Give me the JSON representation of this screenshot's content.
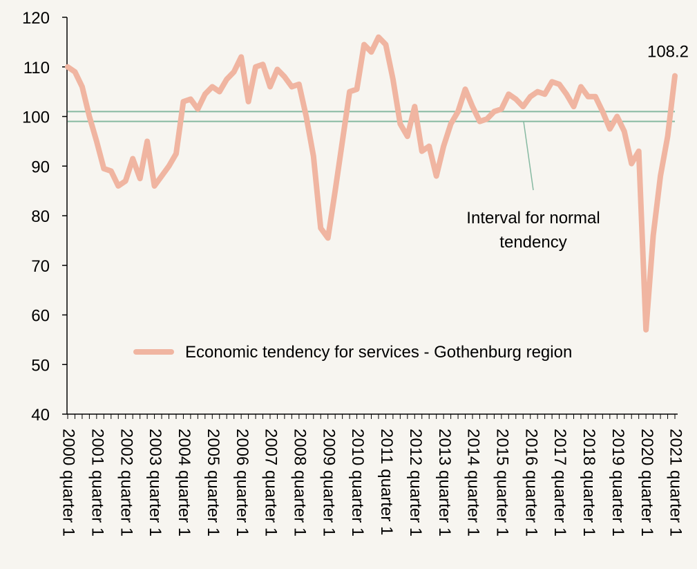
{
  "chart_data": {
    "type": "line",
    "categories": [
      "2000 quarter 1",
      null,
      null,
      null,
      "2001 quarter 1",
      null,
      null,
      null,
      "2002 quarter 1",
      null,
      null,
      null,
      "2003 quarter 1",
      null,
      null,
      null,
      "2004 quarter 1",
      null,
      null,
      null,
      "2005 quarter 1",
      null,
      null,
      null,
      "2006 quarter 1",
      null,
      null,
      null,
      "2007 quarter 1",
      null,
      null,
      null,
      "2008 quarter 1",
      null,
      null,
      null,
      "2009 quarter 1",
      null,
      null,
      null,
      "2010 quarter 1",
      null,
      null,
      null,
      "2011 quarter 1",
      null,
      null,
      null,
      "2012 quarter 1",
      null,
      null,
      null,
      "2013 quarter 1",
      null,
      null,
      null,
      "2014 quarter 1",
      null,
      null,
      null,
      "2015 quarter 1",
      null,
      null,
      null,
      "2016 quarter 1",
      null,
      null,
      null,
      "2017 quarter 1",
      null,
      null,
      null,
      "2018 quarter 1",
      null,
      null,
      null,
      "2019 quarter 1",
      null,
      null,
      null,
      "2020 quarter 1",
      null,
      null,
      null,
      "2021 quarter 1"
    ],
    "series": [
      {
        "name": "Economic tendency for services - Gothenburg region",
        "color": "#f0b5a1",
        "values": [
          110,
          109,
          106,
          100,
          95,
          89.5,
          89,
          86,
          87,
          91.5,
          87.5,
          95,
          86,
          88,
          90,
          92.5,
          103,
          103.5,
          101.5,
          104.5,
          106,
          105,
          107.5,
          109,
          112,
          103,
          110,
          110.5,
          106,
          109.5,
          108,
          106,
          106.5,
          100,
          92,
          77.5,
          75.5,
          85,
          95,
          105,
          105.5,
          114.5,
          113,
          116,
          114.5,
          107.5,
          98.5,
          96,
          102,
          93,
          94,
          88,
          94,
          98.5,
          101,
          105.5,
          102,
          99,
          99.5,
          101,
          101.5,
          104.5,
          103.5,
          102,
          104,
          105,
          104.5,
          107,
          106.5,
          104.5,
          102,
          106,
          104,
          104,
          101,
          97.5,
          100,
          97,
          90.5,
          93,
          57,
          76,
          88,
          96,
          108.2
        ]
      }
    ],
    "ylim": [
      40,
      120
    ],
    "yticks": [
      40,
      50,
      60,
      70,
      80,
      90,
      100,
      110,
      120
    ],
    "normal_interval": {
      "values": [
        99,
        101
      ],
      "color": "#86b9a1",
      "label": [
        "Interval for normal",
        "tendency"
      ]
    },
    "legend": "lower-center"
  }
}
